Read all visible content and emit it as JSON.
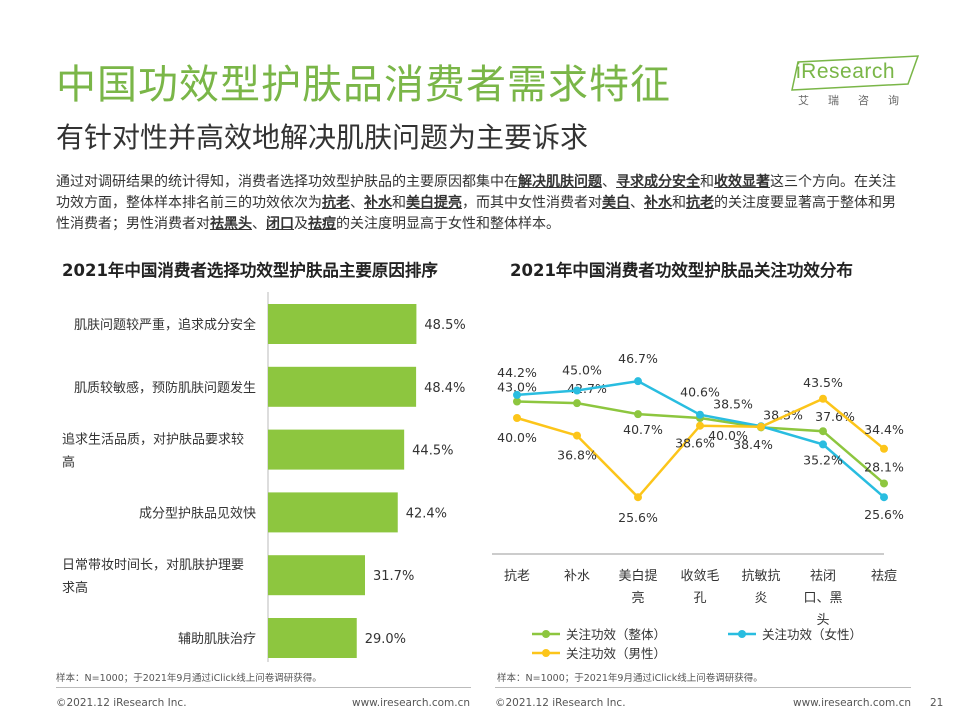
{
  "header": {
    "title": "中国功效型护肤品消费者需求特征",
    "subtitle": "有针对性并高效地解决肌肤问题为主要诉求",
    "logo_word": "iResearch",
    "logo_cn": "艾瑞咨询"
  },
  "intro": {
    "p1": "通过对调研结果的统计得知，消费者选择功效型护肤品的主要原因都集中在",
    "k1": "解决肌肤问题",
    "p2": "、",
    "k2": "寻求成分安全",
    "p3": "和",
    "k3": "收效显著",
    "p4": "这三个方向。在关注功效方面，整体样本排名前三的功效依次为",
    "k4": "抗老",
    "p5": "、",
    "k5": "补水",
    "p6": "和",
    "k6": "美白提亮",
    "p7": "，而其中女性消费者对",
    "k7": "美白",
    "p8": "、",
    "k8": "补水",
    "p9": "和",
    "k9": "抗老",
    "p10": "的关注度要显著高于整体和男性消费者；男性消费者对",
    "k10": "祛黑头",
    "p11": "、",
    "k11": "闭口",
    "p12": "及",
    "k12": "祛痘",
    "p13": "的关注度明显高于女性和整体样本。"
  },
  "colors": {
    "green": "#7ab648",
    "bar": "#8dc63f",
    "cyan": "#29bde0",
    "yellow": "#fcc51a",
    "accent": "#7ab648"
  },
  "chart_data": [
    {
      "type": "bar",
      "orientation": "horizontal",
      "title": "2021年中国消费者选择功效型护肤品主要原因排序",
      "categories": [
        [
          "肌肤问题较严重，追求成分安全"
        ],
        [
          "肌质较敏感，预防肌肤问题发生"
        ],
        [
          "追求生活品质，对护肤品要求较",
          "高"
        ],
        [
          "成分型护肤品见效快"
        ],
        [
          "日常带妆时间长，对肌肤护理要",
          "求高"
        ],
        [
          "辅助肌肤治疗"
        ]
      ],
      "values": [
        48.5,
        48.4,
        44.5,
        42.4,
        31.7,
        29.0
      ],
      "value_labels": [
        "48.5%",
        "48.4%",
        "44.5%",
        "42.4%",
        "31.7%",
        "29.0%"
      ],
      "xlim": [
        0,
        50
      ]
    },
    {
      "type": "line",
      "title": "2021年中国消费者功效型护肤品关注功效分布",
      "categories": [
        [
          "抗老"
        ],
        [
          "补水"
        ],
        [
          "美白提",
          "亮"
        ],
        [
          "收敛毛",
          "孔"
        ],
        [
          "抗敏抗",
          "炎"
        ],
        [
          "祛闭",
          "口、黑",
          "头"
        ],
        [
          "祛痘"
        ]
      ],
      "series": [
        {
          "name": "关注功效（整体）",
          "values": [
            43.0,
            42.7,
            40.7,
            40.0,
            38.3,
            37.6,
            28.1
          ],
          "labels": [
            "43.0%",
            "42.7%",
            "40.7%",
            "40.0%",
            "38.3%",
            "37.6%",
            "28.1%"
          ]
        },
        {
          "name": "关注功效（女性）",
          "values": [
            44.2,
            45.0,
            46.7,
            40.6,
            38.5,
            35.2,
            25.6
          ],
          "labels": [
            "44.2%",
            "45.0%",
            "46.7%",
            "40.6%",
            "38.5%",
            "35.2%",
            "25.6%"
          ]
        },
        {
          "name": "关注功效（男性）",
          "values": [
            40.0,
            36.8,
            25.6,
            38.6,
            38.4,
            43.5,
            34.4
          ],
          "labels": [
            "40.0%",
            "36.8%",
            "25.6%",
            "38.6%",
            "38.4%",
            "43.5%",
            "34.4%"
          ]
        }
      ],
      "legend": "bottom"
    }
  ],
  "notes": {
    "left": "样本：N=1000；于2021年9月通过iClick线上问卷调研获得。",
    "right": "样本：N=1000；于2021年9月通过iClick线上问卷调研获得。"
  },
  "footer": {
    "copyright_left": "©2021.12 iResearch Inc.",
    "website_left": "www.iresearch.com.cn",
    "copyright_right": "©2021.12 iResearch Inc.",
    "website_right": "www.iresearch.com.cn",
    "page": "21"
  }
}
